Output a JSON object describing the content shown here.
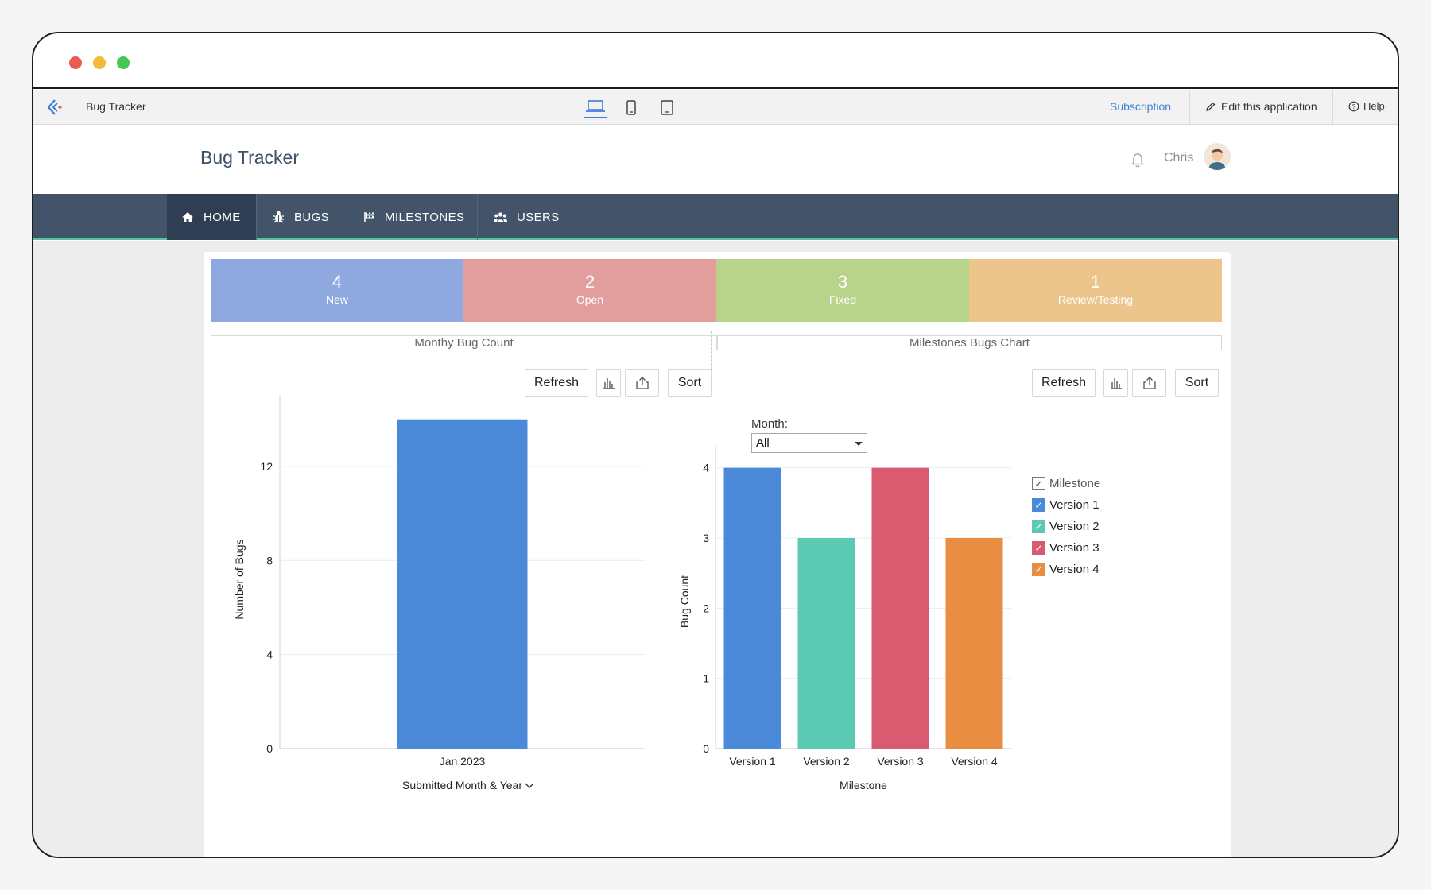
{
  "topbar": {
    "app_name": "Bug Tracker",
    "subscription": "Subscription",
    "edit_app": "Edit this application",
    "help": "Help"
  },
  "header": {
    "title": "Bug Tracker",
    "user": "Chris"
  },
  "nav": {
    "items": [
      {
        "label": "HOME",
        "icon": "home-icon",
        "active": true
      },
      {
        "label": "BUGS",
        "icon": "bug-icon",
        "active": false
      },
      {
        "label": "MILESTONES",
        "icon": "flag-icon",
        "active": false
      },
      {
        "label": "USERS",
        "icon": "users-icon",
        "active": false
      }
    ]
  },
  "stats": [
    {
      "value": "4",
      "label": "New",
      "color": "#8fa9e0"
    },
    {
      "value": "2",
      "label": "Open",
      "color": "#e29d9d"
    },
    {
      "value": "3",
      "label": "Fixed",
      "color": "#b8d38a"
    },
    {
      "value": "1",
      "label": "Review/Testing",
      "color": "#ecc58c"
    }
  ],
  "panels": {
    "left_title": "Monthy Bug Count",
    "right_title": "Milestones Bugs Chart",
    "refresh": "Refresh",
    "sort": "Sort"
  },
  "filter": {
    "label": "Month:",
    "value": "All"
  },
  "chart_data": [
    {
      "type": "bar",
      "categories": [
        "Jan 2023"
      ],
      "values": [
        14
      ],
      "xlabel": "Submitted Month & Year",
      "ylabel": "Number of Bugs",
      "yticks": [
        0,
        4,
        8,
        12
      ],
      "ylim": [
        0,
        14.7
      ],
      "colors": [
        "#4a8ad9"
      ]
    },
    {
      "type": "bar",
      "categories": [
        "Version 1",
        "Version 2",
        "Version 3",
        "Version 4"
      ],
      "values": [
        4,
        3,
        4,
        3
      ],
      "xlabel": "Milestone",
      "ylabel": "Bug Count",
      "yticks": [
        0,
        1,
        2,
        3,
        4
      ],
      "ylim": [
        0,
        4.2
      ],
      "colors": [
        "#4a8ad9",
        "#5ccab3",
        "#d95b70",
        "#e98d42"
      ],
      "legend": {
        "title": "Milestone",
        "entries": [
          "Version 1",
          "Version 2",
          "Version 3",
          "Version 4"
        ],
        "placement": "right"
      }
    }
  ]
}
